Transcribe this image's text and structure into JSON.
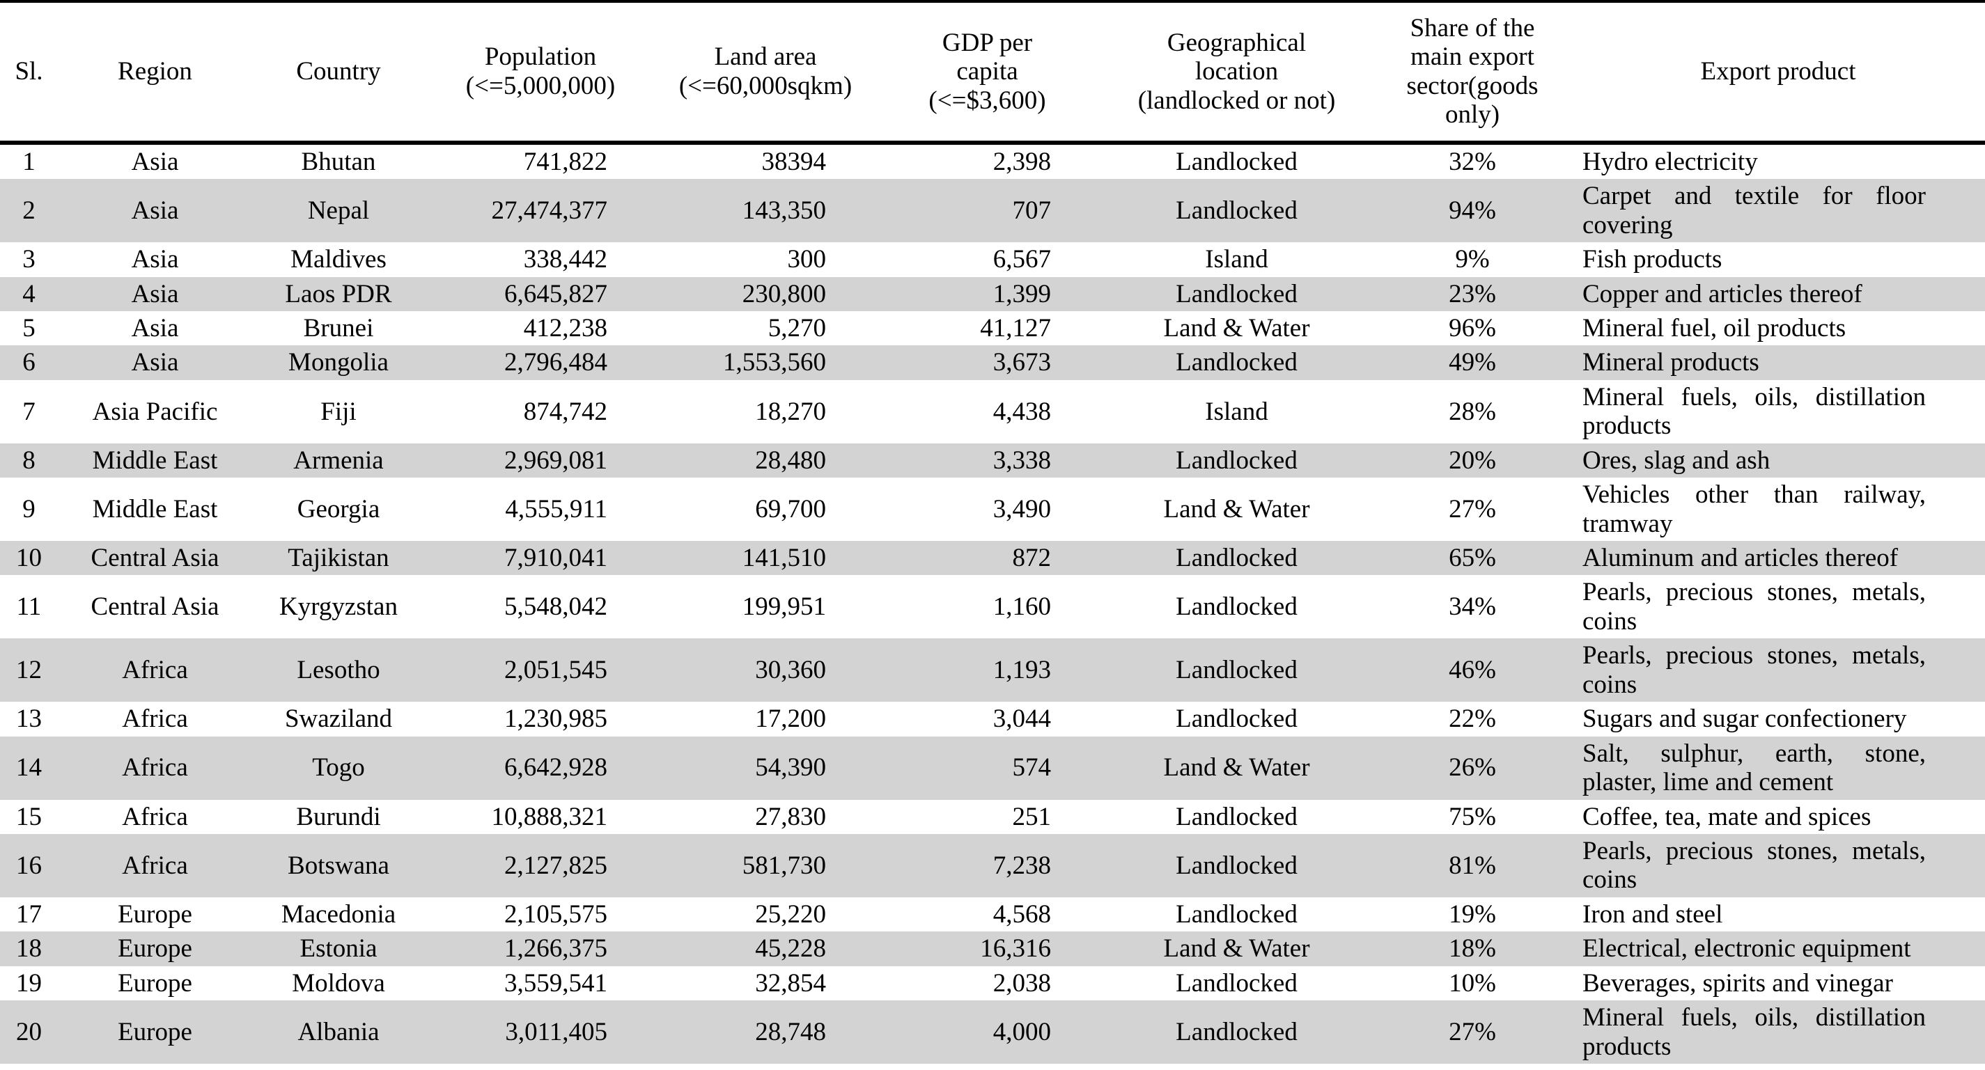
{
  "colors": {
    "row_shade": "#d3d3d3",
    "header_background": "#ffffff",
    "background": "#ffffff",
    "text": "#000000",
    "border": "#000000"
  },
  "table": {
    "columns": [
      {
        "key": "sl",
        "label": "Sl.",
        "align": "center"
      },
      {
        "key": "region",
        "label": "Region",
        "align": "center"
      },
      {
        "key": "country",
        "label": "Country",
        "align": "center"
      },
      {
        "key": "population",
        "label": "Population\n(<=5,000,000)",
        "align": "right"
      },
      {
        "key": "land_area",
        "label": "Land area\n(<=60,000sqkm)",
        "align": "right"
      },
      {
        "key": "gdp_per_capita",
        "label": "GDP per\ncapita\n(<=$3,600)",
        "align": "right"
      },
      {
        "key": "geo_location",
        "label": "Geographical\nlocation\n(landlocked or not)",
        "align": "center"
      },
      {
        "key": "export_share",
        "label": "Share of the\nmain export\nsector(goods\nonly)",
        "align": "center"
      },
      {
        "key": "export_product",
        "label": "Export product",
        "align": "justify"
      }
    ],
    "rows": [
      {
        "sl": "1",
        "region": "Asia",
        "country": "Bhutan",
        "population": "741,822",
        "land_area": "38394",
        "gdp_per_capita": "2,398",
        "geo_location": "Landlocked",
        "export_share": "32%",
        "export_product": "Hydro electricity"
      },
      {
        "sl": "2",
        "region": "Asia",
        "country": "Nepal",
        "population": "27,474,377",
        "land_area": "143,350",
        "gdp_per_capita": "707",
        "geo_location": "Landlocked",
        "export_share": "94%",
        "export_product": "Carpet and textile for floor covering"
      },
      {
        "sl": "3",
        "region": "Asia",
        "country": "Maldives",
        "population": "338,442",
        "land_area": "300",
        "gdp_per_capita": "6,567",
        "geo_location": "Island",
        "export_share": "9%",
        "export_product": "Fish products"
      },
      {
        "sl": "4",
        "region": "Asia",
        "country": "Laos PDR",
        "population": "6,645,827",
        "land_area": "230,800",
        "gdp_per_capita": "1,399",
        "geo_location": "Landlocked",
        "export_share": "23%",
        "export_product": "Copper and articles thereof"
      },
      {
        "sl": "5",
        "region": "Asia",
        "country": "Brunei",
        "population": "412,238",
        "land_area": "5,270",
        "gdp_per_capita": "41,127",
        "geo_location": "Land & Water",
        "export_share": "96%",
        "export_product": "Mineral fuel, oil products"
      },
      {
        "sl": "6",
        "region": "Asia",
        "country": "Mongolia",
        "population": "2,796,484",
        "land_area": "1,553,560",
        "gdp_per_capita": "3,673",
        "geo_location": "Landlocked",
        "export_share": "49%",
        "export_product": "Mineral products"
      },
      {
        "sl": "7",
        "region": "Asia Pacific",
        "country": "Fiji",
        "population": "874,742",
        "land_area": "18,270",
        "gdp_per_capita": "4,438",
        "geo_location": "Island",
        "export_share": "28%",
        "export_product": "Mineral fuels, oils, distillation products"
      },
      {
        "sl": "8",
        "region": "Middle East",
        "country": "Armenia",
        "population": "2,969,081",
        "land_area": "28,480",
        "gdp_per_capita": "3,338",
        "geo_location": "Landlocked",
        "export_share": "20%",
        "export_product": "Ores, slag and ash"
      },
      {
        "sl": "9",
        "region": "Middle East",
        "country": "Georgia",
        "population": "4,555,911",
        "land_area": "69,700",
        "gdp_per_capita": "3,490",
        "geo_location": "Land & Water",
        "export_share": "27%",
        "export_product": "Vehicles other than railway, tramway"
      },
      {
        "sl": "10",
        "region": "Central Asia",
        "country": "Tajikistan",
        "population": "7,910,041",
        "land_area": "141,510",
        "gdp_per_capita": "872",
        "geo_location": "Landlocked",
        "export_share": "65%",
        "export_product": "Aluminum and articles thereof"
      },
      {
        "sl": "11",
        "region": "Central Asia",
        "country": "Kyrgyzstan",
        "population": "5,548,042",
        "land_area": "199,951",
        "gdp_per_capita": "1,160",
        "geo_location": "Landlocked",
        "export_share": "34%",
        "export_product": "Pearls, precious stones, metals, coins"
      },
      {
        "sl": "12",
        "region": "Africa",
        "country": "Lesotho",
        "population": "2,051,545",
        "land_area": "30,360",
        "gdp_per_capita": "1,193",
        "geo_location": "Landlocked",
        "export_share": "46%",
        "export_product": "Pearls, precious stones, metals, coins"
      },
      {
        "sl": "13",
        "region": "Africa",
        "country": "Swaziland",
        "population": "1,230,985",
        "land_area": "17,200",
        "gdp_per_capita": "3,044",
        "geo_location": "Landlocked",
        "export_share": "22%",
        "export_product": "Sugars and sugar confectionery"
      },
      {
        "sl": "14",
        "region": "Africa",
        "country": "Togo",
        "population": "6,642,928",
        "land_area": "54,390",
        "gdp_per_capita": "574",
        "geo_location": "Land & Water",
        "export_share": "26%",
        "export_product": "Salt, sulphur, earth, stone, plaster, lime and cement"
      },
      {
        "sl": "15",
        "region": "Africa",
        "country": "Burundi",
        "population": "10,888,321",
        "land_area": "27,830",
        "gdp_per_capita": "251",
        "geo_location": "Landlocked",
        "export_share": "75%",
        "export_product": "Coffee, tea, mate and spices"
      },
      {
        "sl": "16",
        "region": "Africa",
        "country": "Botswana",
        "population": "2,127,825",
        "land_area": "581,730",
        "gdp_per_capita": "7,238",
        "geo_location": "Landlocked",
        "export_share": "81%",
        "export_product": "Pearls, precious stones, metals, coins"
      },
      {
        "sl": "17",
        "region": "Europe",
        "country": "Macedonia",
        "population": "2,105,575",
        "land_area": "25,220",
        "gdp_per_capita": "4,568",
        "geo_location": "Landlocked",
        "export_share": "19%",
        "export_product": " Iron and steel"
      },
      {
        "sl": "18",
        "region": "Europe",
        "country": "Estonia",
        "population": "1,266,375",
        "land_area": "45,228",
        "gdp_per_capita": "16,316",
        "geo_location": "Land & Water",
        "export_share": "18%",
        "export_product": "Electrical, electronic equipment"
      },
      {
        "sl": "19",
        "region": "Europe",
        "country": "Moldova",
        "population": "3,559,541",
        "land_area": "32,854",
        "gdp_per_capita": "2,038",
        "geo_location": "Landlocked",
        "export_share": "10%",
        "export_product": "Beverages, spirits and vinegar"
      },
      {
        "sl": "20",
        "region": "Europe",
        "country": "Albania",
        "population": "3,011,405",
        "land_area": "28,748",
        "gdp_per_capita": "4,000",
        "geo_location": "Landlocked",
        "export_share": "27%",
        "export_product": "Mineral fuels, oils, distillation products"
      }
    ]
  }
}
